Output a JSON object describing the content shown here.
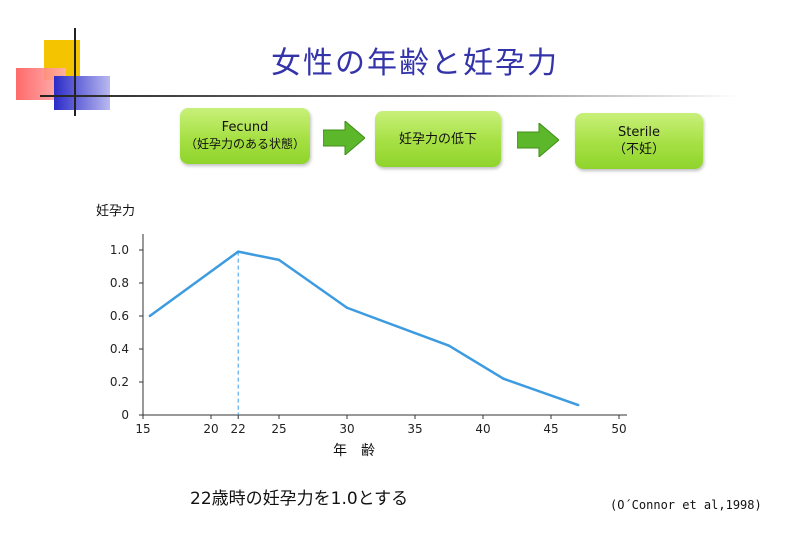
{
  "title": "女性の年齢と妊孕力",
  "flow": {
    "box1_line1": "Fecund",
    "box1_line2": "（妊孕力のある状態）",
    "box2": "妊孕力の低下",
    "box3_line1": "Sterile",
    "box3_line2": "（不妊）"
  },
  "colors": {
    "title": "#3333aa",
    "line": "#3d9be0",
    "box": "#a6e043",
    "arrow": "#5cb82a"
  },
  "note": "22歳時の妊孕力を1.0とする",
  "citation": "(O´Connor et al,1998)",
  "chart_data": {
    "type": "line",
    "ylabel": "妊孕力",
    "xlabel": "年　齢",
    "x_ticks": [
      "15",
      "20",
      "22",
      "25",
      "30",
      "35",
      "40",
      "45",
      "50"
    ],
    "x_tick_values": [
      15,
      20,
      22,
      25,
      30,
      35,
      40,
      45,
      50
    ],
    "y_ticks": [
      "0",
      "0.2",
      "0.4",
      "0.6",
      "0.8",
      "1.0"
    ],
    "y_tick_values": [
      0,
      0.2,
      0.4,
      0.6,
      0.8,
      1.0
    ],
    "xlim": [
      15,
      50
    ],
    "ylim": [
      0,
      1.0
    ],
    "x": [
      15.5,
      22,
      25,
      30,
      37.5,
      41.5,
      47
    ],
    "y": [
      0.6,
      0.99,
      0.94,
      0.65,
      0.42,
      0.22,
      0.06
    ],
    "reference_x": 22
  }
}
